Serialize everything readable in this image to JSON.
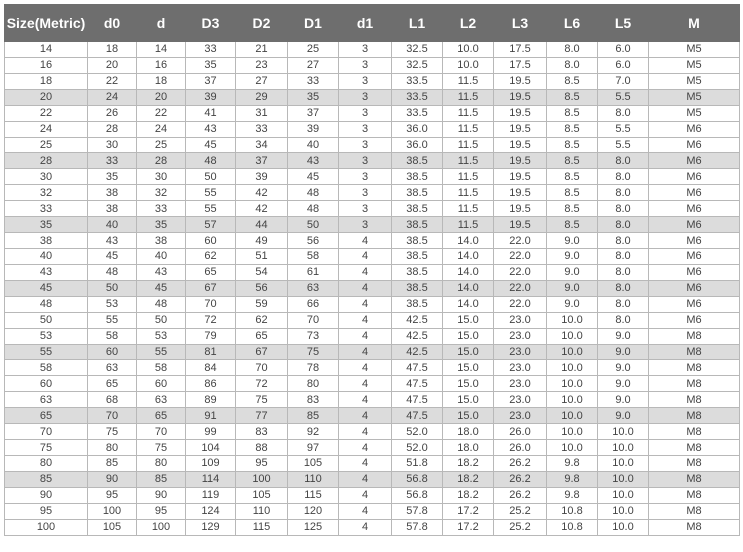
{
  "headers": [
    "Size(Metric)",
    "d0",
    "d",
    "D3",
    "D2",
    "D1",
    "d1",
    "L1",
    "L2",
    "L3",
    "L6",
    "L5",
    "M"
  ],
  "rows": [
    [
      "14",
      "18",
      "14",
      "33",
      "21",
      "25",
      "3",
      "32.5",
      "10.0",
      "17.5",
      "8.0",
      "6.0",
      "M5"
    ],
    [
      "16",
      "20",
      "16",
      "35",
      "23",
      "27",
      "3",
      "32.5",
      "10.0",
      "17.5",
      "8.0",
      "6.0",
      "M5"
    ],
    [
      "18",
      "22",
      "18",
      "37",
      "27",
      "33",
      "3",
      "33.5",
      "11.5",
      "19.5",
      "8.5",
      "7.0",
      "M5"
    ],
    [
      "20",
      "24",
      "20",
      "39",
      "29",
      "35",
      "3",
      "33.5",
      "11.5",
      "19.5",
      "8.5",
      "5.5",
      "M5"
    ],
    [
      "22",
      "26",
      "22",
      "41",
      "31",
      "37",
      "3",
      "33.5",
      "11.5",
      "19.5",
      "8.5",
      "8.0",
      "M5"
    ],
    [
      "24",
      "28",
      "24",
      "43",
      "33",
      "39",
      "3",
      "36.0",
      "11.5",
      "19.5",
      "8.5",
      "5.5",
      "M6"
    ],
    [
      "25",
      "30",
      "25",
      "45",
      "34",
      "40",
      "3",
      "36.0",
      "11.5",
      "19.5",
      "8.5",
      "5.5",
      "M6"
    ],
    [
      "28",
      "33",
      "28",
      "48",
      "37",
      "43",
      "3",
      "38.5",
      "11.5",
      "19.5",
      "8.5",
      "8.0",
      "M6"
    ],
    [
      "30",
      "35",
      "30",
      "50",
      "39",
      "45",
      "3",
      "38.5",
      "11.5",
      "19.5",
      "8.5",
      "8.0",
      "M6"
    ],
    [
      "32",
      "38",
      "32",
      "55",
      "42",
      "48",
      "3",
      "38.5",
      "11.5",
      "19.5",
      "8.5",
      "8.0",
      "M6"
    ],
    [
      "33",
      "38",
      "33",
      "55",
      "42",
      "48",
      "3",
      "38.5",
      "11.5",
      "19.5",
      "8.5",
      "8.0",
      "M6"
    ],
    [
      "35",
      "40",
      "35",
      "57",
      "44",
      "50",
      "3",
      "38.5",
      "11.5",
      "19.5",
      "8.5",
      "8.0",
      "M6"
    ],
    [
      "38",
      "43",
      "38",
      "60",
      "49",
      "56",
      "4",
      "38.5",
      "14.0",
      "22.0",
      "9.0",
      "8.0",
      "M6"
    ],
    [
      "40",
      "45",
      "40",
      "62",
      "51",
      "58",
      "4",
      "38.5",
      "14.0",
      "22.0",
      "9.0",
      "8.0",
      "M6"
    ],
    [
      "43",
      "48",
      "43",
      "65",
      "54",
      "61",
      "4",
      "38.5",
      "14.0",
      "22.0",
      "9.0",
      "8.0",
      "M6"
    ],
    [
      "45",
      "50",
      "45",
      "67",
      "56",
      "63",
      "4",
      "38.5",
      "14.0",
      "22.0",
      "9.0",
      "8.0",
      "M6"
    ],
    [
      "48",
      "53",
      "48",
      "70",
      "59",
      "66",
      "4",
      "38.5",
      "14.0",
      "22.0",
      "9.0",
      "8.0",
      "M6"
    ],
    [
      "50",
      "55",
      "50",
      "72",
      "62",
      "70",
      "4",
      "42.5",
      "15.0",
      "23.0",
      "10.0",
      "8.0",
      "M6"
    ],
    [
      "53",
      "58",
      "53",
      "79",
      "65",
      "73",
      "4",
      "42.5",
      "15.0",
      "23.0",
      "10.0",
      "9.0",
      "M8"
    ],
    [
      "55",
      "60",
      "55",
      "81",
      "67",
      "75",
      "4",
      "42.5",
      "15.0",
      "23.0",
      "10.0",
      "9.0",
      "M8"
    ],
    [
      "58",
      "63",
      "58",
      "84",
      "70",
      "78",
      "4",
      "47.5",
      "15.0",
      "23.0",
      "10.0",
      "9.0",
      "M8"
    ],
    [
      "60",
      "65",
      "60",
      "86",
      "72",
      "80",
      "4",
      "47.5",
      "15.0",
      "23.0",
      "10.0",
      "9.0",
      "M8"
    ],
    [
      "63",
      "68",
      "63",
      "89",
      "75",
      "83",
      "4",
      "47.5",
      "15.0",
      "23.0",
      "10.0",
      "9.0",
      "M8"
    ],
    [
      "65",
      "70",
      "65",
      "91",
      "77",
      "85",
      "4",
      "47.5",
      "15.0",
      "23.0",
      "10.0",
      "9.0",
      "M8"
    ],
    [
      "70",
      "75",
      "70",
      "99",
      "83",
      "92",
      "4",
      "52.0",
      "18.0",
      "26.0",
      "10.0",
      "10.0",
      "M8"
    ],
    [
      "75",
      "80",
      "75",
      "104",
      "88",
      "97",
      "4",
      "52.0",
      "18.0",
      "26.0",
      "10.0",
      "10.0",
      "M8"
    ],
    [
      "80",
      "85",
      "80",
      "109",
      "95",
      "105",
      "4",
      "51.8",
      "18.2",
      "26.2",
      "9.8",
      "10.0",
      "M8"
    ],
    [
      "85",
      "90",
      "85",
      "114",
      "100",
      "110",
      "4",
      "56.8",
      "18.2",
      "26.2",
      "9.8",
      "10.0",
      "M8"
    ],
    [
      "90",
      "95",
      "90",
      "119",
      "105",
      "115",
      "4",
      "56.8",
      "18.2",
      "26.2",
      "9.8",
      "10.0",
      "M8"
    ],
    [
      "95",
      "100",
      "95",
      "124",
      "110",
      "120",
      "4",
      "57.8",
      "17.2",
      "25.2",
      "10.8",
      "10.0",
      "M8"
    ],
    [
      "100",
      "105",
      "100",
      "129",
      "115",
      "125",
      "4",
      "57.8",
      "17.2",
      "25.2",
      "10.8",
      "10.0",
      "M8"
    ]
  ],
  "shaded_rows": [
    3,
    7,
    11,
    15,
    19,
    23,
    27
  ],
  "colors": {
    "header_bg": "#6e6e6e",
    "header_text": "#ffffff",
    "shade_bg": "#dcdcdc",
    "grid": "#b8b8b8",
    "cell_text": "#444444"
  }
}
